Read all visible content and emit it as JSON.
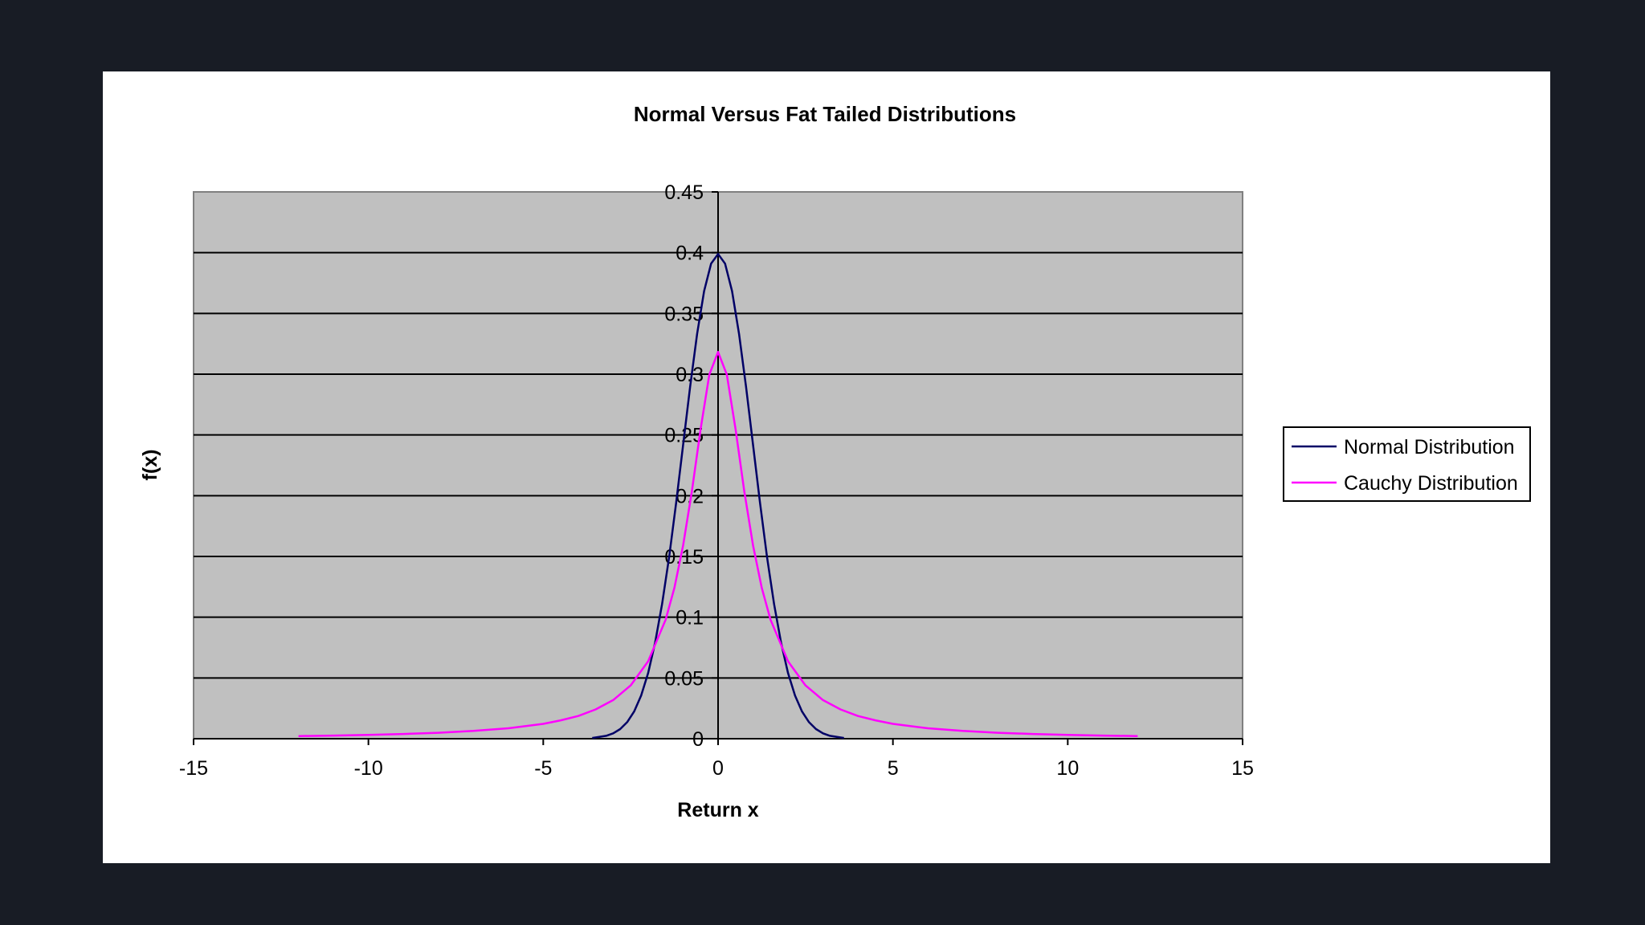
{
  "chart_data": {
    "type": "line",
    "title": "Normal Versus Fat Tailed Distributions",
    "xlabel": "Return x",
    "ylabel": "f(x)",
    "xlim": [
      -15,
      15
    ],
    "ylim": [
      0,
      0.45
    ],
    "x_ticks": [
      -15,
      -10,
      -5,
      0,
      5,
      10,
      15
    ],
    "x_tick_labels": [
      "-15",
      "-10",
      "-5",
      "0",
      "5",
      "10",
      "15"
    ],
    "y_ticks": [
      0,
      0.05,
      0.1,
      0.15,
      0.2,
      0.25,
      0.3,
      0.35,
      0.4,
      0.45
    ],
    "y_tick_labels": [
      "0",
      "0.05",
      "0.1",
      "0.15",
      "0.2",
      "0.25",
      "0.3",
      "0.35",
      "0.4",
      "0.45"
    ],
    "grid": true,
    "plot_background": "#c0c0c0",
    "legend_position": "right",
    "series": [
      {
        "name": "Normal Distribution",
        "color": "#000066",
        "x": [
          -3.6,
          -3.2,
          -3.0,
          -2.8,
          -2.6,
          -2.4,
          -2.2,
          -2.0,
          -1.8,
          -1.6,
          -1.4,
          -1.2,
          -1.0,
          -0.8,
          -0.6,
          -0.4,
          -0.2,
          0.0,
          0.2,
          0.4,
          0.6,
          0.8,
          1.0,
          1.2,
          1.4,
          1.6,
          1.8,
          2.0,
          2.2,
          2.4,
          2.6,
          2.8,
          3.0,
          3.2,
          3.6
        ],
        "y": [
          0.0006,
          0.0024,
          0.0044,
          0.0079,
          0.0136,
          0.0224,
          0.0355,
          0.054,
          0.079,
          0.1109,
          0.1497,
          0.1942,
          0.242,
          0.2897,
          0.3332,
          0.3683,
          0.391,
          0.3989,
          0.391,
          0.3683,
          0.3332,
          0.2897,
          0.242,
          0.1942,
          0.1497,
          0.1109,
          0.079,
          0.054,
          0.0355,
          0.0224,
          0.0136,
          0.0079,
          0.0044,
          0.0024,
          0.0006
        ]
      },
      {
        "name": "Cauchy Distribution",
        "color": "#ff00ff",
        "x": [
          -12,
          -11,
          -10,
          -9,
          -8,
          -7,
          -6,
          -5,
          -4.5,
          -4,
          -3.5,
          -3,
          -2.5,
          -2,
          -1.5,
          -1.25,
          -1,
          -0.75,
          -0.5,
          -0.25,
          0,
          0.25,
          0.5,
          0.75,
          1,
          1.25,
          1.5,
          2,
          2.5,
          3,
          3.5,
          4,
          4.5,
          5,
          6,
          7,
          8,
          9,
          10,
          11,
          12
        ],
        "y": [
          0.0022,
          0.0026,
          0.0032,
          0.0039,
          0.0049,
          0.0064,
          0.0086,
          0.0122,
          0.0151,
          0.0187,
          0.0241,
          0.0318,
          0.0439,
          0.0637,
          0.0979,
          0.1241,
          0.1592,
          0.2037,
          0.2546,
          0.2996,
          0.3183,
          0.2996,
          0.2546,
          0.2037,
          0.1592,
          0.1241,
          0.0979,
          0.0637,
          0.0439,
          0.0318,
          0.0241,
          0.0187,
          0.0151,
          0.0122,
          0.0086,
          0.0064,
          0.0049,
          0.0039,
          0.0032,
          0.0026,
          0.0022
        ]
      }
    ]
  }
}
